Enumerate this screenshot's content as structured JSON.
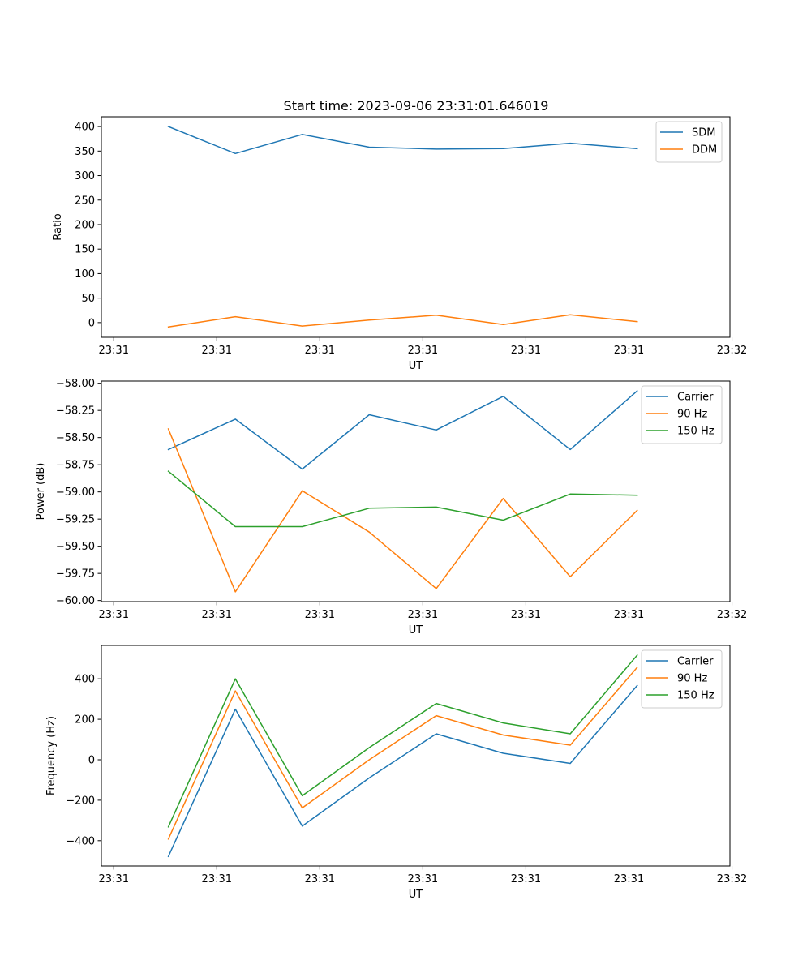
{
  "figure_title": "Start time: 2023-09-06 23:31:01.646019",
  "colors": {
    "blue": "#1f77b4",
    "orange": "#ff7f0e",
    "green": "#2ca02c"
  },
  "chart_data": [
    {
      "type": "line",
      "title": "Start time: 2023-09-06 23:31:01.646019",
      "xlabel": "UT",
      "ylabel": "Ratio",
      "x": [
        0.65,
        1.3,
        1.95,
        2.6,
        3.25,
        3.9,
        4.55,
        5.2
      ],
      "xlim": [
        0,
        6.1
      ],
      "xticks": [
        0.12,
        1.12,
        2.12,
        3.12,
        4.12,
        5.12,
        6.12
      ],
      "xtick_labels": [
        "23:31",
        "23:31",
        "23:31",
        "23:31",
        "23:31",
        "23:31",
        "23:32"
      ],
      "ylim": [
        -30,
        420
      ],
      "yticks": [
        0,
        50,
        100,
        150,
        200,
        250,
        300,
        350,
        400
      ],
      "ytick_labels": [
        "0",
        "50",
        "100",
        "150",
        "200",
        "250",
        "300",
        "350",
        "400"
      ],
      "legend_position": "top-right",
      "series": [
        {
          "name": "SDM",
          "color": "#1f77b4",
          "values": [
            400,
            345,
            384,
            358,
            354,
            355,
            366,
            355
          ]
        },
        {
          "name": "DDM",
          "color": "#ff7f0e",
          "values": [
            -9,
            12,
            -7,
            5,
            15,
            -4,
            16,
            2
          ]
        }
      ]
    },
    {
      "type": "line",
      "title": "",
      "xlabel": "UT",
      "ylabel": "Power (dB)",
      "x": [
        0.65,
        1.3,
        1.95,
        2.6,
        3.25,
        3.9,
        4.55,
        5.2
      ],
      "xlim": [
        0,
        6.1
      ],
      "xticks": [
        0.12,
        1.12,
        2.12,
        3.12,
        4.12,
        5.12,
        6.12
      ],
      "xtick_labels": [
        "23:31",
        "23:31",
        "23:31",
        "23:31",
        "23:31",
        "23:31",
        "23:32"
      ],
      "ylim": [
        -60.01,
        -57.98
      ],
      "yticks": [
        -60.0,
        -59.75,
        -59.5,
        -59.25,
        -59.0,
        -58.75,
        -58.5,
        -58.25,
        -58.0
      ],
      "ytick_labels": [
        "−60.00",
        "−59.75",
        "−59.50",
        "−59.25",
        "−59.00",
        "−58.75",
        "−58.50",
        "−58.25",
        "−58.00"
      ],
      "legend_position": "top-right",
      "series": [
        {
          "name": "Carrier",
          "color": "#1f77b4",
          "values": [
            -58.61,
            -58.33,
            -58.79,
            -58.29,
            -58.43,
            -58.12,
            -58.61,
            -58.07
          ]
        },
        {
          "name": "90 Hz",
          "color": "#ff7f0e",
          "values": [
            -58.42,
            -59.92,
            -58.99,
            -59.37,
            -59.89,
            -59.06,
            -59.78,
            -59.17
          ]
        },
        {
          "name": "150 Hz",
          "color": "#2ca02c",
          "values": [
            -58.81,
            -59.32,
            -59.32,
            -59.15,
            -59.14,
            -59.26,
            -59.02,
            -59.03
          ]
        }
      ]
    },
    {
      "type": "line",
      "title": "",
      "xlabel": "UT",
      "ylabel": "Frequency (Hz)",
      "x": [
        0.65,
        1.3,
        1.95,
        2.6,
        3.25,
        3.9,
        4.55,
        5.2
      ],
      "xlim": [
        0,
        6.1
      ],
      "xticks": [
        0.12,
        1.12,
        2.12,
        3.12,
        4.12,
        5.12,
        6.12
      ],
      "xtick_labels": [
        "23:31",
        "23:31",
        "23:31",
        "23:31",
        "23:31",
        "23:31",
        "23:32"
      ],
      "ylim": [
        -525,
        565
      ],
      "yticks": [
        -400,
        -200,
        0,
        200,
        400
      ],
      "ytick_labels": [
        "−400",
        "−200",
        "0",
        "200",
        "400"
      ],
      "legend_position": "top-right",
      "series": [
        {
          "name": "Carrier",
          "color": "#1f77b4",
          "values": [
            -478,
            250,
            -328,
            -90,
            128,
            32,
            -18,
            367
          ]
        },
        {
          "name": "90 Hz",
          "color": "#ff7f0e",
          "values": [
            -392,
            340,
            -238,
            0,
            218,
            122,
            72,
            457
          ]
        },
        {
          "name": "150 Hz",
          "color": "#2ca02c",
          "values": [
            -332,
            400,
            -178,
            60,
            278,
            182,
            128,
            517
          ]
        }
      ]
    }
  ]
}
